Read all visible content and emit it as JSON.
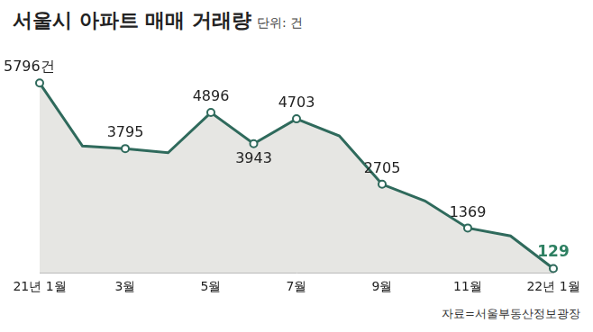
{
  "chart_data": {
    "type": "line",
    "title": "서울시 아파트 매매 거래량",
    "subtitle": "단위: 건",
    "source": "자료=서울부동산정보광장",
    "categories": [
      "21년 1월",
      null,
      "3월",
      null,
      "5월",
      null,
      "7월",
      null,
      "9월",
      null,
      "11월",
      null,
      "22년 1월"
    ],
    "values": [
      5796,
      3874,
      3795,
      3667,
      4896,
      3943,
      4703,
      4180,
      2705,
      2197,
      1369,
      1127,
      129
    ],
    "value_labels": [
      "5796건",
      null,
      "3795",
      null,
      "4896",
      "3943",
      "4703",
      null,
      "2705",
      null,
      "1369",
      null,
      "129"
    ],
    "data_labels": true,
    "color": "#2f6a5c",
    "ylim": [
      0,
      6300
    ],
    "grid": false,
    "tick_labels": "x"
  }
}
